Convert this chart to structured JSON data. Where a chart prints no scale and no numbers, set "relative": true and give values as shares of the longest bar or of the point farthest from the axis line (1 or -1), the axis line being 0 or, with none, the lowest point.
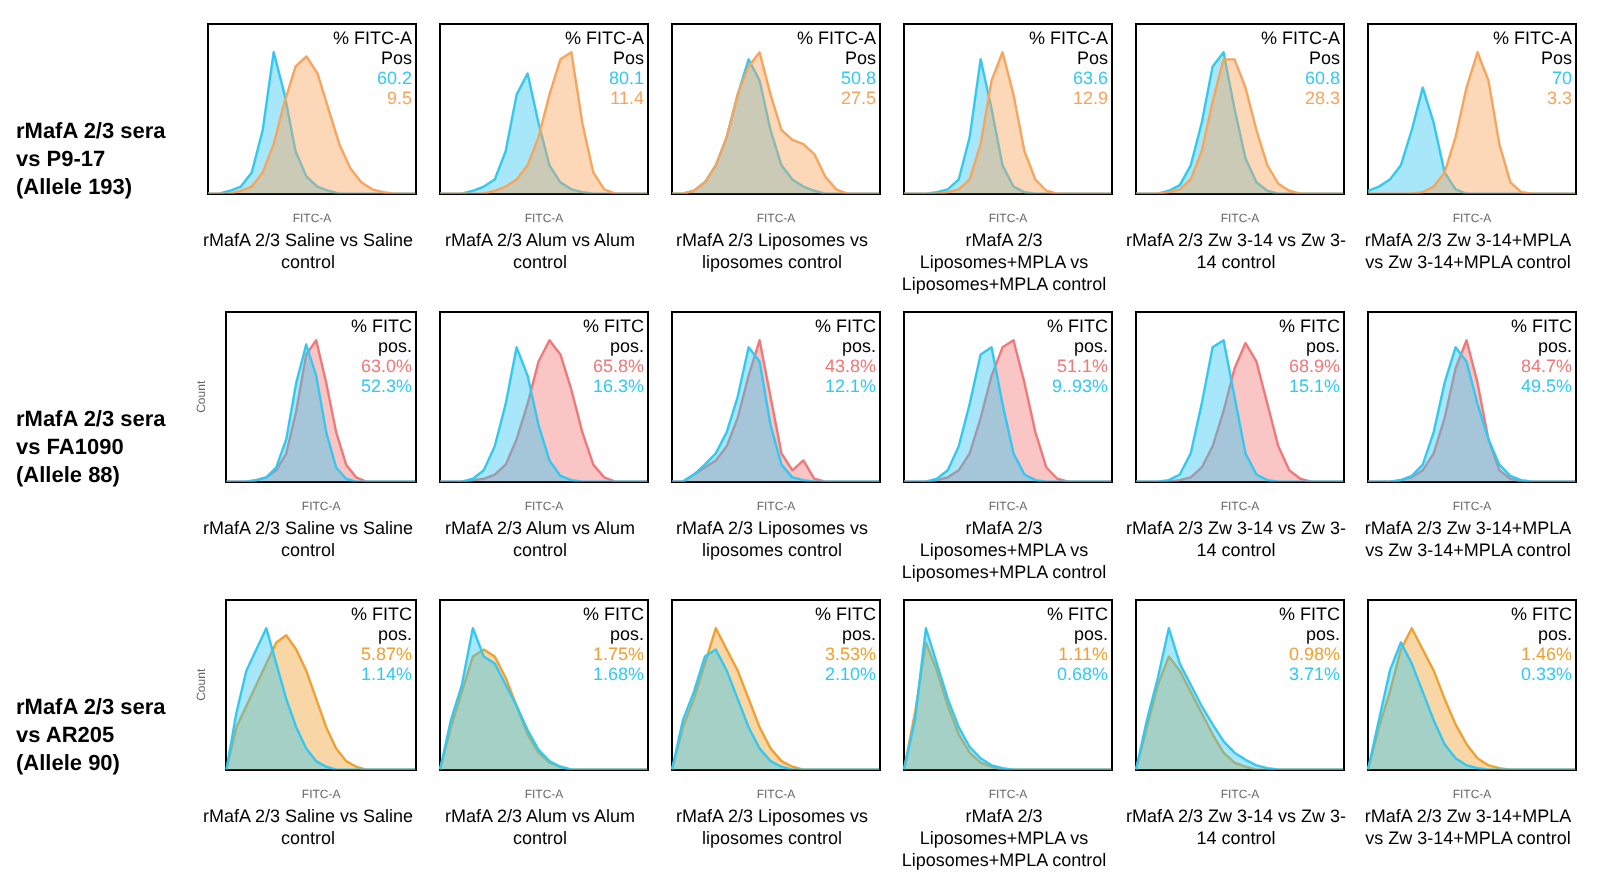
{
  "chart_data": [
    {
      "type": "other",
      "title": "rMafA 2/3 sera vs P9-17 (Allele 193)"
    },
    {
      "type": "area",
      "title": "rMafA 2/3 Saline vs Saline control",
      "xlabel": "FITC-A",
      "legend_title": "% FITC-A\nPos",
      "legend": "top right",
      "relative": true,
      "categories": [
        null,
        null,
        null,
        null,
        null,
        null,
        null,
        null,
        null,
        null,
        null,
        null,
        null,
        null,
        null,
        null,
        null,
        null,
        null,
        null
      ],
      "series": [
        {
          "name": "60.2",
          "color": "#33c8f2",
          "values": [
            0,
            0,
            0.02,
            0.05,
            0.15,
            0.45,
            1.0,
            0.7,
            0.3,
            0.12,
            0.05,
            0.02,
            0,
            0,
            0,
            0,
            0,
            0,
            0,
            0
          ]
        },
        {
          "name": "9.5",
          "color": "#f7a45c",
          "values": [
            0,
            0,
            0,
            0.02,
            0.05,
            0.15,
            0.35,
            0.65,
            0.9,
            0.97,
            0.85,
            0.6,
            0.35,
            0.18,
            0.08,
            0.03,
            0.01,
            0,
            0,
            0
          ]
        }
      ]
    },
    {
      "type": "area",
      "title": "rMafA 2/3 Alum vs Alum control",
      "xlabel": "FITC-A",
      "legend_title": "% FITC-A\nPos",
      "legend": "top right",
      "relative": true,
      "categories": [
        null,
        null,
        null,
        null,
        null,
        null,
        null,
        null,
        null,
        null,
        null,
        null,
        null,
        null,
        null,
        null,
        null,
        null,
        null,
        null
      ],
      "series": [
        {
          "name": "80.1",
          "color": "#33c8f2",
          "values": [
            0,
            0,
            0,
            0.02,
            0.05,
            0.1,
            0.3,
            0.7,
            0.85,
            0.5,
            0.2,
            0.08,
            0.03,
            0.01,
            0,
            0,
            0,
            0,
            0,
            0
          ]
        },
        {
          "name": "11.4",
          "color": "#f7a45c",
          "values": [
            0,
            0,
            0,
            0,
            0,
            0.02,
            0.05,
            0.1,
            0.2,
            0.4,
            0.7,
            0.95,
            1.0,
            0.5,
            0.15,
            0.03,
            0,
            0,
            0,
            0
          ]
        }
      ]
    },
    {
      "type": "area",
      "title": "rMafA 2/3 Liposomes vs liposomes control",
      "xlabel": "FITC-A",
      "legend_title": "% FITC-A\nPos",
      "legend": "top right",
      "relative": true,
      "categories": [
        null,
        null,
        null,
        null,
        null,
        null,
        null,
        null,
        null,
        null,
        null,
        null,
        null,
        null,
        null,
        null,
        null,
        null,
        null,
        null
      ],
      "series": [
        {
          "name": "50.8",
          "color": "#33c8f2",
          "values": [
            0,
            0,
            0.02,
            0.08,
            0.2,
            0.4,
            0.7,
            0.95,
            0.8,
            0.45,
            0.2,
            0.1,
            0.05,
            0.02,
            0,
            0,
            0,
            0,
            0,
            0
          ]
        },
        {
          "name": "27.5",
          "color": "#f7a45c",
          "values": [
            0,
            0,
            0.02,
            0.08,
            0.2,
            0.4,
            0.7,
            0.9,
            1.0,
            0.7,
            0.45,
            0.38,
            0.35,
            0.28,
            0.12,
            0.03,
            0,
            0,
            0,
            0
          ]
        }
      ]
    },
    {
      "type": "area",
      "title": "rMafA 2/3 Liposomes+MPLA vs Liposomes+MPLA  control",
      "xlabel": "FITC-A",
      "legend_title": "% FITC-A\nPos",
      "legend": "top right",
      "relative": true,
      "categories": [
        null,
        null,
        null,
        null,
        null,
        null,
        null,
        null,
        null,
        null,
        null,
        null,
        null,
        null,
        null,
        null,
        null,
        null,
        null,
        null
      ],
      "series": [
        {
          "name": "63.6",
          "color": "#33c8f2",
          "values": [
            0,
            0,
            0,
            0.01,
            0.03,
            0.1,
            0.4,
            0.95,
            0.6,
            0.2,
            0.05,
            0.01,
            0,
            0,
            0,
            0,
            0,
            0,
            0,
            0
          ]
        },
        {
          "name": "12.9",
          "color": "#f7a45c",
          "values": [
            0,
            0,
            0,
            0,
            0.01,
            0.03,
            0.1,
            0.35,
            0.8,
            1.0,
            0.7,
            0.3,
            0.1,
            0.02,
            0,
            0,
            0,
            0,
            0,
            0
          ]
        }
      ]
    },
    {
      "type": "area",
      "title": "rMafA 2/3 Zw 3-14 vs Zw 3-14 control",
      "xlabel": "FITC-A",
      "legend_title": "% FITC-A\nPos",
      "legend": "top right",
      "relative": true,
      "categories": [
        null,
        null,
        null,
        null,
        null,
        null,
        null,
        null,
        null,
        null,
        null,
        null,
        null,
        null,
        null,
        null,
        null,
        null,
        null,
        null
      ],
      "series": [
        {
          "name": "60.8",
          "color": "#33c8f2",
          "values": [
            0,
            0,
            0,
            0.02,
            0.06,
            0.2,
            0.5,
            0.9,
            1.0,
            0.6,
            0.25,
            0.08,
            0.02,
            0,
            0,
            0,
            0,
            0,
            0,
            0
          ]
        },
        {
          "name": "28.3",
          "color": "#f7a45c",
          "values": [
            0,
            0,
            0,
            0.01,
            0.03,
            0.1,
            0.3,
            0.65,
            0.95,
            0.95,
            0.75,
            0.45,
            0.2,
            0.07,
            0.02,
            0,
            0,
            0,
            0,
            0
          ]
        }
      ]
    },
    {
      "type": "area",
      "title": "rMafA 2/3 Zw 3-14+MPLA vs Zw 3-14+MPLA control",
      "xlabel": "FITC-A",
      "legend_title": "% FITC-A\nPos",
      "legend": "top right",
      "relative": true,
      "categories": [
        null,
        null,
        null,
        null,
        null,
        null,
        null,
        null,
        null,
        null,
        null,
        null,
        null,
        null,
        null,
        null,
        null,
        null,
        null,
        null
      ],
      "series": [
        {
          "name": "70",
          "color": "#33c8f2",
          "values": [
            0.02,
            0.05,
            0.1,
            0.2,
            0.45,
            0.75,
            0.5,
            0.15,
            0.03,
            0,
            0,
            0,
            0,
            0,
            0,
            0,
            0,
            0,
            0,
            0
          ]
        },
        {
          "name": "3.3",
          "color": "#f7a45c",
          "values": [
            0,
            0,
            0,
            0,
            0,
            0.01,
            0.05,
            0.15,
            0.4,
            0.75,
            1.0,
            0.8,
            0.35,
            0.08,
            0.01,
            0,
            0,
            0,
            0,
            0
          ]
        }
      ]
    },
    {
      "type": "other",
      "title": "rMafA 2/3 sera vs FA1090 (Allele 88)"
    },
    {
      "type": "area",
      "title": "rMafA 2/3 Saline vs Saline control",
      "xlabel": "FITC-A",
      "ylabel": "Count",
      "legend_title": "% FITC\npos.",
      "legend": "top right",
      "relative": true,
      "categories": [
        null,
        null,
        null,
        null,
        null,
        null,
        null,
        null,
        null,
        null,
        null,
        null,
        null,
        null,
        null,
        null,
        null,
        null,
        null,
        null
      ],
      "series": [
        {
          "name": "63.0%",
          "color": "#f07878",
          "values": [
            0,
            0,
            0,
            0.01,
            0.03,
            0.08,
            0.2,
            0.5,
            0.9,
            1.0,
            0.7,
            0.35,
            0.12,
            0.03,
            0,
            0,
            0,
            0,
            0,
            0
          ]
        },
        {
          "name": "52.3%",
          "color": "#33c8f2",
          "values": [
            0,
            0,
            0,
            0.01,
            0.03,
            0.1,
            0.3,
            0.7,
            0.97,
            0.75,
            0.35,
            0.1,
            0.02,
            0,
            0,
            0,
            0,
            0,
            0,
            0
          ]
        }
      ]
    },
    {
      "type": "area",
      "title": "rMafA 2/3 Alum vs Alum control",
      "xlabel": "FITC-A",
      "legend_title": "% FITC\npos.",
      "legend": "top right",
      "relative": true,
      "categories": [
        null,
        null,
        null,
        null,
        null,
        null,
        null,
        null,
        null,
        null,
        null,
        null,
        null,
        null,
        null,
        null,
        null,
        null,
        null,
        null
      ],
      "series": [
        {
          "name": "65.8%",
          "color": "#f07878",
          "values": [
            0,
            0,
            0,
            0.01,
            0.02,
            0.05,
            0.12,
            0.3,
            0.55,
            0.85,
            1.0,
            0.9,
            0.65,
            0.35,
            0.12,
            0.03,
            0,
            0,
            0,
            0
          ]
        },
        {
          "name": "16.3%",
          "color": "#33c8f2",
          "values": [
            0,
            0,
            0,
            0.02,
            0.08,
            0.25,
            0.55,
            0.95,
            0.75,
            0.4,
            0.15,
            0.04,
            0.01,
            0,
            0,
            0,
            0,
            0,
            0,
            0
          ]
        }
      ]
    },
    {
      "type": "area",
      "title": "rMafA 2/3 Liposomes vs liposomes control",
      "xlabel": "FITC-A",
      "legend_title": "% FITC\npos.",
      "legend": "top right",
      "relative": true,
      "categories": [
        null,
        null,
        null,
        null,
        null,
        null,
        null,
        null,
        null,
        null,
        null,
        null,
        null,
        null,
        null,
        null,
        null,
        null,
        null,
        null
      ],
      "series": [
        {
          "name": "43.8%",
          "color": "#f07878",
          "values": [
            0,
            0,
            0.05,
            0.1,
            0.15,
            0.25,
            0.45,
            0.75,
            1.0,
            0.6,
            0.2,
            0.08,
            0.15,
            0.02,
            0,
            0,
            0,
            0,
            0,
            0
          ]
        },
        {
          "name": "12.1%",
          "color": "#33c8f2",
          "values": [
            0,
            0,
            0.05,
            0.12,
            0.2,
            0.35,
            0.6,
            0.95,
            0.85,
            0.4,
            0.12,
            0.03,
            0.01,
            0,
            0,
            0,
            0,
            0,
            0,
            0
          ]
        }
      ]
    },
    {
      "type": "area",
      "title": "rMafA 2/3 Liposomes+MPLA vs Liposomes+MPLA  control",
      "xlabel": "FITC-A",
      "legend_title": "% FITC\npos.",
      "legend": "top right",
      "relative": true,
      "categories": [
        null,
        null,
        null,
        null,
        null,
        null,
        null,
        null,
        null,
        null,
        null,
        null,
        null,
        null,
        null,
        null,
        null,
        null,
        null,
        null
      ],
      "series": [
        {
          "name": "51.1%",
          "color": "#f07878",
          "values": [
            0,
            0,
            0,
            0.01,
            0.03,
            0.08,
            0.2,
            0.45,
            0.75,
            0.95,
            1.0,
            0.7,
            0.35,
            0.1,
            0.02,
            0,
            0,
            0,
            0,
            0
          ]
        },
        {
          "name": "9..93%",
          "color": "#33c8f2",
          "values": [
            0,
            0,
            0,
            0.02,
            0.08,
            0.25,
            0.55,
            0.9,
            0.95,
            0.55,
            0.2,
            0.05,
            0.01,
            0,
            0,
            0,
            0,
            0,
            0,
            0
          ]
        }
      ]
    },
    {
      "type": "area",
      "title": "rMafA 2/3 Zw 3-14 vs Zw 3-14 control",
      "xlabel": "FITC-A",
      "legend_title": "% FITC\npos.",
      "legend": "top right",
      "relative": true,
      "categories": [
        null,
        null,
        null,
        null,
        null,
        null,
        null,
        null,
        null,
        null,
        null,
        null,
        null,
        null,
        null,
        null,
        null,
        null,
        null,
        null
      ],
      "series": [
        {
          "name": "68.9%",
          "color": "#f07878",
          "values": [
            0,
            0,
            0,
            0,
            0.01,
            0.03,
            0.1,
            0.25,
            0.5,
            0.8,
            0.98,
            0.85,
            0.55,
            0.25,
            0.08,
            0.02,
            0,
            0,
            0,
            0
          ]
        },
        {
          "name": "15.1%",
          "color": "#33c8f2",
          "values": [
            0,
            0,
            0,
            0.01,
            0.05,
            0.2,
            0.55,
            0.95,
            1.0,
            0.6,
            0.2,
            0.05,
            0.01,
            0,
            0,
            0,
            0,
            0,
            0,
            0
          ]
        }
      ]
    },
    {
      "type": "area",
      "title": "rMafA 2/3 Zw 3-14+MPLA vs Zw 3-14+MPLA control",
      "xlabel": "FITC-A",
      "legend_title": "% FITC\npos.",
      "legend": "top right",
      "relative": true,
      "categories": [
        null,
        null,
        null,
        null,
        null,
        null,
        null,
        null,
        null,
        null,
        null,
        null,
        null,
        null,
        null,
        null,
        null,
        null,
        null,
        null
      ],
      "series": [
        {
          "name": "84.7%",
          "color": "#f07878",
          "values": [
            0,
            0,
            0,
            0.01,
            0.03,
            0.08,
            0.2,
            0.45,
            0.8,
            1.0,
            0.7,
            0.3,
            0.08,
            0.02,
            0,
            0,
            0,
            0,
            0,
            0
          ]
        },
        {
          "name": "49.5%",
          "color": "#33c8f2",
          "values": [
            0,
            0,
            0,
            0.01,
            0.04,
            0.12,
            0.35,
            0.7,
            0.95,
            0.85,
            0.55,
            0.3,
            0.12,
            0.04,
            0.01,
            0,
            0,
            0,
            0,
            0
          ]
        }
      ]
    },
    {
      "type": "other",
      "title": "rMafA 2/3 sera vs AR205 (Allele 90)"
    },
    {
      "type": "area",
      "title": "rMafA 2/3 Saline vs Saline control",
      "xlabel": "FITC-A",
      "ylabel": "Count",
      "legend_title": "% FITC\npos.",
      "legend": "top right",
      "relative": true,
      "categories": [
        null,
        null,
        null,
        null,
        null,
        null,
        null,
        null,
        null,
        null,
        null,
        null,
        null,
        null,
        null,
        null,
        null,
        null,
        null,
        null
      ],
      "series": [
        {
          "name": "5.87%",
          "color": "#f0a030",
          "values": [
            0,
            0.3,
            0.45,
            0.6,
            0.75,
            0.9,
            0.95,
            0.85,
            0.7,
            0.5,
            0.3,
            0.15,
            0.06,
            0.02,
            0,
            0,
            0,
            0,
            0,
            0
          ]
        },
        {
          "name": "1.14%",
          "color": "#33c8f2",
          "values": [
            0,
            0.4,
            0.7,
            0.85,
            1.0,
            0.75,
            0.5,
            0.3,
            0.15,
            0.06,
            0.02,
            0,
            0,
            0,
            0,
            0,
            0,
            0,
            0,
            0
          ]
        }
      ]
    },
    {
      "type": "area",
      "title": "rMafA 2/3 Alum vs Alum control",
      "xlabel": "FITC-A",
      "legend_title": "% FITC\npos.",
      "legend": "top right",
      "relative": true,
      "categories": [
        null,
        null,
        null,
        null,
        null,
        null,
        null,
        null,
        null,
        null,
        null,
        null,
        null,
        null,
        null,
        null,
        null,
        null,
        null,
        null
      ],
      "series": [
        {
          "name": "1.75%",
          "color": "#f0a030",
          "values": [
            0,
            0.3,
            0.55,
            0.8,
            0.85,
            0.8,
            0.65,
            0.45,
            0.25,
            0.12,
            0.05,
            0.02,
            0,
            0,
            0,
            0,
            0,
            0,
            0,
            0
          ]
        },
        {
          "name": "1.68%",
          "color": "#33c8f2",
          "values": [
            0,
            0.35,
            0.6,
            1.0,
            0.8,
            0.75,
            0.6,
            0.45,
            0.28,
            0.14,
            0.06,
            0.02,
            0,
            0,
            0,
            0,
            0,
            0,
            0,
            0
          ]
        }
      ]
    },
    {
      "type": "area",
      "title": "rMafA 2/3 Liposomes vs liposomes control",
      "xlabel": "FITC-A",
      "legend_title": "% FITC\npos.",
      "legend": "top right",
      "relative": true,
      "categories": [
        null,
        null,
        null,
        null,
        null,
        null,
        null,
        null,
        null,
        null,
        null,
        null,
        null,
        null,
        null,
        null,
        null,
        null,
        null,
        null
      ],
      "series": [
        {
          "name": "3.53%",
          "color": "#f0a030",
          "values": [
            0,
            0.3,
            0.5,
            0.75,
            1.0,
            0.85,
            0.7,
            0.5,
            0.3,
            0.15,
            0.06,
            0.02,
            0,
            0,
            0,
            0,
            0,
            0,
            0,
            0
          ]
        },
        {
          "name": "2.10%",
          "color": "#33c8f2",
          "values": [
            0,
            0.35,
            0.55,
            0.8,
            0.85,
            0.7,
            0.5,
            0.3,
            0.15,
            0.06,
            0.02,
            0,
            0,
            0,
            0,
            0,
            0,
            0,
            0,
            0
          ]
        }
      ]
    },
    {
      "type": "area",
      "title": "rMafA 2/3 Liposomes+MPLA vs Liposomes+MPLA  control",
      "xlabel": "FITC-A",
      "legend_title": "% FITC\npos.",
      "legend": "top right",
      "relative": true,
      "categories": [
        null,
        null,
        null,
        null,
        null,
        null,
        null,
        null,
        null,
        null,
        null,
        null,
        null,
        null,
        null,
        null,
        null,
        null,
        null,
        null
      ],
      "series": [
        {
          "name": "1.11%",
          "color": "#f0a030",
          "values": [
            0,
            0.4,
            0.9,
            0.7,
            0.45,
            0.25,
            0.12,
            0.05,
            0.02,
            0,
            0,
            0,
            0,
            0,
            0,
            0,
            0,
            0,
            0,
            0
          ]
        },
        {
          "name": "0.68%",
          "color": "#33c8f2",
          "values": [
            0,
            0.35,
            1.0,
            0.75,
            0.5,
            0.3,
            0.16,
            0.08,
            0.03,
            0.01,
            0,
            0,
            0,
            0,
            0,
            0,
            0,
            0,
            0,
            0
          ]
        }
      ]
    },
    {
      "type": "area",
      "title": "rMafA 2/3 Zw 3-14 vs Zw 3-14 control",
      "xlabel": "FITC-A",
      "legend_title": "% FITC\npos.",
      "legend": "top right",
      "relative": true,
      "categories": [
        null,
        null,
        null,
        null,
        null,
        null,
        null,
        null,
        null,
        null,
        null,
        null,
        null,
        null,
        null,
        null,
        null,
        null,
        null,
        null
      ],
      "series": [
        {
          "name": "0.98%",
          "color": "#f0a030",
          "values": [
            0,
            0.3,
            0.6,
            0.8,
            0.7,
            0.55,
            0.4,
            0.25,
            0.12,
            0.05,
            0.02,
            0,
            0,
            0,
            0,
            0,
            0,
            0,
            0,
            0
          ]
        },
        {
          "name": "3.71%",
          "color": "#33c8f2",
          "values": [
            0,
            0.35,
            0.65,
            1.0,
            0.75,
            0.6,
            0.45,
            0.32,
            0.2,
            0.12,
            0.07,
            0.03,
            0.01,
            0,
            0,
            0,
            0,
            0,
            0,
            0
          ]
        }
      ]
    },
    {
      "type": "area",
      "title": "rMafA 2/3 Zw 3-14+MPLA vs Zw 3-14+MPLA control",
      "xlabel": "FITC-A",
      "legend_title": "% FITC\npos.",
      "legend": "top right",
      "relative": true,
      "categories": [
        null,
        null,
        null,
        null,
        null,
        null,
        null,
        null,
        null,
        null,
        null,
        null,
        null,
        null,
        null,
        null,
        null,
        null,
        null,
        null
      ],
      "series": [
        {
          "name": "1.46%",
          "color": "#f0a030",
          "values": [
            0,
            0.3,
            0.55,
            0.85,
            1.0,
            0.85,
            0.7,
            0.5,
            0.32,
            0.18,
            0.08,
            0.03,
            0.01,
            0,
            0,
            0,
            0,
            0,
            0,
            0
          ]
        },
        {
          "name": "0.33%",
          "color": "#33c8f2",
          "values": [
            0,
            0.35,
            0.7,
            0.9,
            0.75,
            0.55,
            0.35,
            0.18,
            0.08,
            0.03,
            0.01,
            0,
            0,
            0,
            0,
            0,
            0,
            0,
            0,
            0
          ]
        }
      ]
    }
  ]
}
